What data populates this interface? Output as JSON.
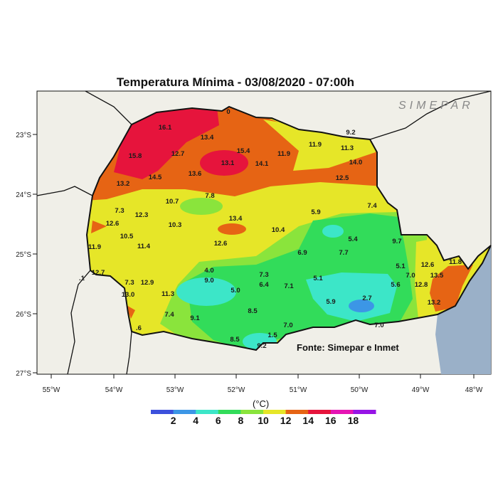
{
  "title": "Temperatura Mínima - 03/08/2020 - 07:00h",
  "logo_text": "SIMEPAR",
  "source": "Fonte: Simepar e Inmet",
  "lat_ticks": [
    "23°S",
    "24°S",
    "25°S",
    "26°S",
    "27°S"
  ],
  "lon_ticks": [
    "55°W",
    "54°W",
    "53°W",
    "52°W",
    "51°W",
    "50°W",
    "49°W",
    "48°W"
  ],
  "colorbar": {
    "unit": "(°C)",
    "labels": [
      "2",
      "4",
      "6",
      "8",
      "10",
      "12",
      "14",
      "16",
      "18"
    ],
    "colors": [
      "#3c50dc",
      "#3c96e6",
      "#3ce6c8",
      "#32dc5a",
      "#8ae43c",
      "#e6e628",
      "#e66414",
      "#e6143c",
      "#e614b4",
      "#9614e6"
    ]
  },
  "stations": [
    "16.1",
    "13.4",
    "15.8",
    "12.7",
    "15.4",
    "13.1",
    "14.1",
    "11.9",
    "11.9",
    "11.3",
    "9.2",
    "0",
    "14.0",
    "12.5",
    "13.6",
    "14.5",
    "13.2",
    "7.8",
    "10.7",
    "7.3",
    "12.3",
    "12.6",
    "10.3",
    "13.4",
    "10.4",
    "10.5",
    "11.4",
    "11.9",
    "12.6",
    "12.7",
    ".1",
    "7.3",
    "12.9",
    "13.0",
    "11.3",
    "4.0",
    "9.0",
    "5.0",
    "7.3",
    "6.4",
    "8.5",
    "7.4",
    "9.1",
    "8.5",
    "1.5",
    "9.2",
    "5.9",
    "7.4",
    "5.4",
    "6.9",
    "7.7",
    "9.7",
    "5.1",
    "7.1",
    "5.9",
    "2.7",
    "7.0",
    "5.1",
    "7.0",
    "5.6",
    "12.6",
    "11.8",
    "13.5",
    "12.8",
    "13.2",
    "7.0",
    ".6"
  ]
}
